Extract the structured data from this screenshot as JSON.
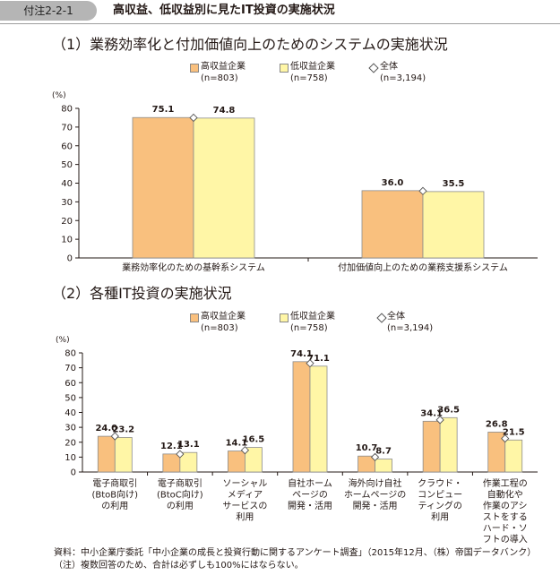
{
  "header": {
    "tag": "付注2-2-1",
    "title": "高収益、低収益別に見たIT投資の実施状況"
  },
  "colors": {
    "high": "#f9c07e",
    "low": "#fff6a6",
    "overall_marker": "#ffffff",
    "axis": "#231815"
  },
  "section1": {
    "title": "（1）業務効率化と付加価値向上のためのシステムの実施状況",
    "legend": [
      {
        "label": "高収益企業",
        "sub": "(n=803)"
      },
      {
        "label": "低収益企業",
        "sub": "(n=758)"
      },
      {
        "label": "全体",
        "sub": "(n=3,194)"
      }
    ]
  },
  "section2": {
    "title": "（2）各種IT投資の実施状況",
    "legend": [
      {
        "label": "高収益企業",
        "sub": "(n=803)"
      },
      {
        "label": "低収益企業",
        "sub": "(n=758)"
      },
      {
        "label": "全体",
        "sub": "(n=3,194)"
      }
    ]
  },
  "chart_data": [
    {
      "type": "bar",
      "ylabel": "(%)",
      "ylim": [
        0,
        80
      ],
      "yticks": [
        0,
        10,
        20,
        30,
        40,
        50,
        60,
        70,
        80
      ],
      "categories": [
        "業務効率化のための基幹系システム",
        "付加価値向上のための業務支援系システム"
      ],
      "series": [
        {
          "name": "高収益企業",
          "values": [
            75.1,
            36.0
          ],
          "labels": [
            "75.1",
            "36.0"
          ]
        },
        {
          "name": "低収益企業",
          "values": [
            74.8,
            35.5
          ],
          "labels": [
            "74.8",
            "35.5"
          ]
        }
      ],
      "overall": {
        "name": "全体",
        "values": [
          75.0,
          35.8
        ]
      },
      "grid": false,
      "legend_position": "top"
    },
    {
      "type": "bar",
      "ylabel": "(%)",
      "ylim": [
        0,
        80
      ],
      "yticks": [
        0,
        10,
        20,
        30,
        40,
        50,
        60,
        70,
        80
      ],
      "categories": [
        [
          "電子商取引",
          "(BtoB向け)",
          "の利用"
        ],
        [
          "電子商取引",
          "(BtoC向け)",
          "の利用"
        ],
        [
          "ソーシャル",
          "メディア",
          "サービスの",
          "利用"
        ],
        [
          "自社ホーム",
          "ページの",
          "開発・活用"
        ],
        [
          "海外向け自社",
          "ホームページの",
          "開発・活用"
        ],
        [
          "クラウド・",
          "コンピュー",
          "ティングの",
          "利用"
        ],
        [
          "作業工程の",
          "自動化や",
          "作業のアシ",
          "ストをする",
          "ハード・ソ",
          "フトの導入"
        ]
      ],
      "series": [
        {
          "name": "高収益企業",
          "values": [
            24.0,
            12.1,
            14.1,
            74.1,
            10.7,
            34.1,
            26.8
          ],
          "labels": [
            "24.0",
            "12.1",
            "14.1",
            "74.1",
            "10.7",
            "34.1",
            "26.8"
          ]
        },
        {
          "name": "低収益企業",
          "values": [
            23.2,
            13.1,
            16.5,
            71.1,
            8.7,
            36.5,
            21.5
          ],
          "labels": [
            "23.2",
            "13.1",
            "16.5",
            "71.1",
            "8.7",
            "36.5",
            "21.5"
          ]
        }
      ],
      "overall": {
        "name": "全体",
        "values": [
          24.0,
          12.0,
          14.6,
          73.0,
          10.0,
          35.0,
          22.5
        ]
      },
      "grid": false,
      "legend_position": "top"
    }
  ],
  "source": {
    "line1": "資料：中小企業庁委託「中小企業の成長と投資行動に関するアンケート調査」（2015年12月、（株）帝国データバンク）",
    "line2": "（注）複数回答のため、合計は必ずしも100%にはならない。"
  }
}
